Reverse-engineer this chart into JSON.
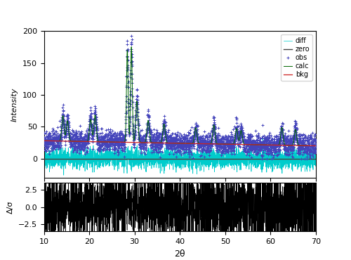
{
  "x_min": 10,
  "x_max": 70,
  "y_min": -30,
  "y_max": 200,
  "y2_min": -3.5,
  "y2_max": 3.5,
  "xlabel": "2θ",
  "ylabel": "Intensity",
  "y2label": "Δ/σ",
  "obs_color": "#4444bb",
  "calc_color": "#006600",
  "bkg_color": "#cc2222",
  "diff_color": "#00cccc",
  "zero_color": "#444444",
  "residual_color": "#000000",
  "legend_entries": [
    "obs",
    "calc",
    "bkg",
    "diff",
    "zero"
  ],
  "obs_marker": "+",
  "obs_markersize": 3,
  "seed": 42,
  "n_points": 3600,
  "bkg_start": 28,
  "bkg_end": 20,
  "peak_positions": [
    14.2,
    15.2,
    20.3,
    21.3,
    28.4,
    29.3,
    30.5,
    33.0,
    36.5,
    43.5,
    47.5,
    52.5,
    53.5,
    62.5,
    65.5
  ],
  "peak_heights": [
    40,
    32,
    35,
    42,
    145,
    150,
    65,
    35,
    30,
    25,
    30,
    25,
    22,
    28,
    25
  ],
  "peak_widths": [
    0.25,
    0.25,
    0.25,
    0.25,
    0.18,
    0.18,
    0.25,
    0.25,
    0.25,
    0.25,
    0.25,
    0.25,
    0.25,
    0.25,
    0.25
  ],
  "noise_amplitude": 8,
  "main_plot_height_ratio": 3,
  "residual_plot_height_ratio": 1,
  "figure_width": 5.0,
  "figure_height": 3.7,
  "figure_dpi": 100,
  "yticks": [
    0,
    50,
    100,
    150,
    200
  ],
  "xticks": [
    10,
    20,
    30,
    40,
    50,
    60,
    70
  ],
  "y2ticks": [
    -2.5,
    0.0,
    2.5
  ]
}
